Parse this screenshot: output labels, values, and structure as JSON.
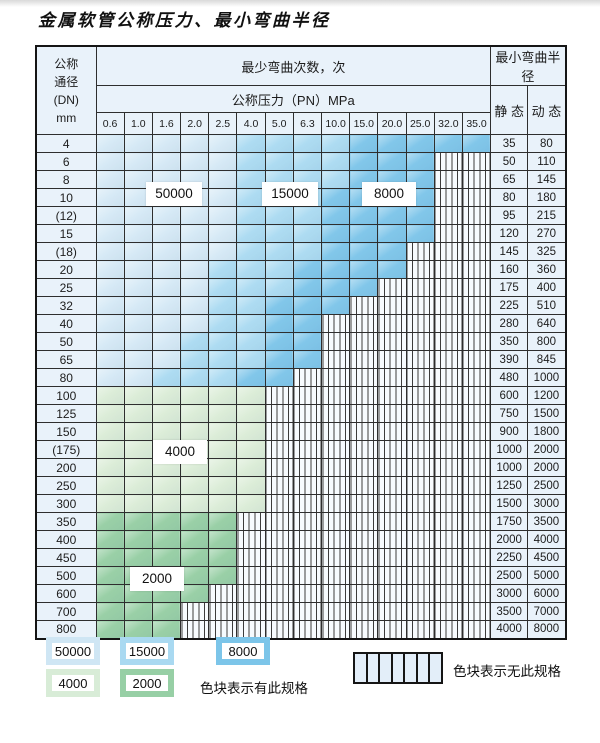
{
  "title": "金属软管公称压力、最小弯曲半径",
  "table": {
    "corner": {
      "line1": "公称",
      "line2": "通径",
      "line3": "(DN)",
      "line4": "mm"
    },
    "bend_header": "最少弯曲次数，次",
    "pressure_header": "公称压力（PN）MPa",
    "radius_header": "最小弯曲半径",
    "static_label": "静 态",
    "dynamic_label": "动 态",
    "pressures": [
      "0.6",
      "1.0",
      "1.6",
      "2.0",
      "2.5",
      "4.0",
      "5.0",
      "6.3",
      "10.0",
      "15.0",
      "20.0",
      "25.0",
      "32.0",
      "35.0"
    ],
    "rows": [
      {
        "dn": "4",
        "static": "35",
        "dynamic": "80",
        "kind": "blue",
        "end": 13,
        "mid": 5,
        "dark": 9
      },
      {
        "dn": "6",
        "static": "50",
        "dynamic": "110",
        "kind": "blue",
        "end": 11,
        "mid": 5,
        "dark": 9
      },
      {
        "dn": "8",
        "static": "65",
        "dynamic": "145",
        "kind": "blue",
        "end": 11,
        "mid": 5,
        "dark": 9
      },
      {
        "dn": "10",
        "static": "80",
        "dynamic": "180",
        "kind": "blue",
        "end": 11,
        "mid": 5,
        "dark": 8
      },
      {
        "dn": "(12)",
        "static": "95",
        "dynamic": "215",
        "kind": "blue",
        "end": 11,
        "mid": 5,
        "dark": 8
      },
      {
        "dn": "15",
        "static": "120",
        "dynamic": "270",
        "kind": "blue",
        "end": 11,
        "mid": 5,
        "dark": 8
      },
      {
        "dn": "(18)",
        "static": "145",
        "dynamic": "325",
        "kind": "blue",
        "end": 10,
        "mid": 5,
        "dark": 8
      },
      {
        "dn": "20",
        "static": "160",
        "dynamic": "360",
        "kind": "blue",
        "end": 10,
        "mid": 4,
        "dark": 7
      },
      {
        "dn": "25",
        "static": "175",
        "dynamic": "400",
        "kind": "blue",
        "end": 9,
        "mid": 4,
        "dark": 7
      },
      {
        "dn": "32",
        "static": "225",
        "dynamic": "510",
        "kind": "blue",
        "end": 8,
        "mid": 4,
        "dark": 6
      },
      {
        "dn": "40",
        "static": "280",
        "dynamic": "640",
        "kind": "blue",
        "end": 7,
        "mid": 4,
        "dark": 6
      },
      {
        "dn": "50",
        "static": "350",
        "dynamic": "800",
        "kind": "blue",
        "end": 7,
        "mid": 3,
        "dark": 6
      },
      {
        "dn": "65",
        "static": "390",
        "dynamic": "845",
        "kind": "blue",
        "end": 7,
        "mid": 3,
        "dark": 6
      },
      {
        "dn": "80",
        "static": "480",
        "dynamic": "1000",
        "kind": "blue",
        "end": 6,
        "mid": 2,
        "dark": 5
      },
      {
        "dn": "100",
        "static": "600",
        "dynamic": "1200",
        "kind": "green4",
        "end": 5
      },
      {
        "dn": "125",
        "static": "750",
        "dynamic": "1500",
        "kind": "green4",
        "end": 5
      },
      {
        "dn": "150",
        "static": "900",
        "dynamic": "1800",
        "kind": "green4",
        "end": 5
      },
      {
        "dn": "(175)",
        "static": "1000",
        "dynamic": "2000",
        "kind": "green4",
        "end": 5
      },
      {
        "dn": "200",
        "static": "1000",
        "dynamic": "2000",
        "kind": "green4",
        "end": 5
      },
      {
        "dn": "250",
        "static": "1250",
        "dynamic": "2500",
        "kind": "green4",
        "end": 5
      },
      {
        "dn": "300",
        "static": "1500",
        "dynamic": "3000",
        "kind": "green4",
        "end": 5
      },
      {
        "dn": "350",
        "static": "1750",
        "dynamic": "3500",
        "kind": "green2",
        "end": 4
      },
      {
        "dn": "400",
        "static": "2000",
        "dynamic": "4000",
        "kind": "green2",
        "end": 4
      },
      {
        "dn": "450",
        "static": "2250",
        "dynamic": "4500",
        "kind": "green2",
        "end": 4
      },
      {
        "dn": "500",
        "static": "2500",
        "dynamic": "5000",
        "kind": "green2",
        "end": 4
      },
      {
        "dn": "600",
        "static": "3000",
        "dynamic": "6000",
        "kind": "green2",
        "end": 3
      },
      {
        "dn": "700",
        "static": "3500",
        "dynamic": "7000",
        "kind": "green2",
        "end": 2
      },
      {
        "dn": "800",
        "static": "4000",
        "dynamic": "8000",
        "kind": "green2",
        "end": 2
      }
    ]
  },
  "zone_labels": [
    {
      "id": "50000",
      "text": "50000"
    },
    {
      "id": "15000",
      "text": "15000"
    },
    {
      "id": "8000",
      "text": "8000"
    },
    {
      "id": "4000",
      "text": "4000"
    },
    {
      "id": "2000",
      "text": "2000"
    }
  ],
  "legend": {
    "items": [
      {
        "id": "50000",
        "label": "50000",
        "color": "#cfe6f4"
      },
      {
        "id": "15000",
        "label": "15000",
        "color": "#a9d9f1"
      },
      {
        "id": "8000",
        "label": "8000",
        "color": "#7cc5e9"
      },
      {
        "id": "4000",
        "label": "4000",
        "color": "#d8ecd7"
      },
      {
        "id": "2000",
        "label": "2000",
        "color": "#97cfa5"
      }
    ],
    "has_spec_text": "色块表示有此规格",
    "no_spec_text": "色块表示无此规格"
  },
  "colors": {
    "blue_50000": "#d7eaf6",
    "blue_15000": "#aedcf2",
    "blue_8000": "#82c7ea",
    "green_4000": "#dcedd8",
    "green_2000": "#9ad0a7",
    "label_bg": "#e9f2fa"
  }
}
